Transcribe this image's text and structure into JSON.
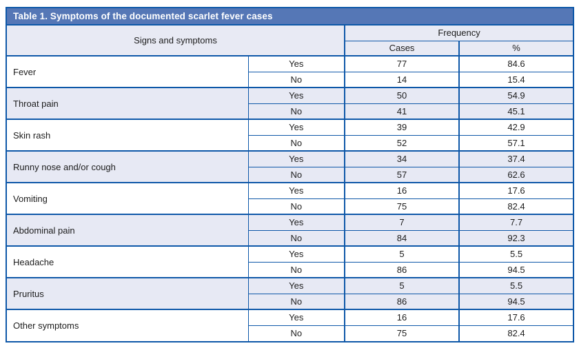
{
  "page": {
    "title_bar": "Table 1. Symptoms of the documented scarlet fever cases"
  },
  "table": {
    "columns": {
      "signs": "Signs and symptoms",
      "frequency": "Frequency",
      "cases": "Cases",
      "percent": "%"
    },
    "answer_labels": {
      "yes": "Yes",
      "no": "No"
    },
    "rows": [
      {
        "symptom": "Fever",
        "yes": {
          "cases": "77",
          "percent": "84.6"
        },
        "no": {
          "cases": "14",
          "percent": "15.4"
        }
      },
      {
        "symptom": "Throat pain",
        "yes": {
          "cases": "50",
          "percent": "54.9"
        },
        "no": {
          "cases": "41",
          "percent": "45.1"
        }
      },
      {
        "symptom": "Skin rash",
        "yes": {
          "cases": "39",
          "percent": "42.9"
        },
        "no": {
          "cases": "52",
          "percent": "57.1"
        }
      },
      {
        "symptom": "Runny nose and/or cough",
        "yes": {
          "cases": "34",
          "percent": "37.4"
        },
        "no": {
          "cases": "57",
          "percent": "62.6"
        }
      },
      {
        "symptom": "Vomiting",
        "yes": {
          "cases": "16",
          "percent": "17.6"
        },
        "no": {
          "cases": "75",
          "percent": "82.4"
        }
      },
      {
        "symptom": "Abdominal pain",
        "yes": {
          "cases": "7",
          "percent": "7.7"
        },
        "no": {
          "cases": "84",
          "percent": "92.3"
        }
      },
      {
        "symptom": "Headache",
        "yes": {
          "cases": "5",
          "percent": "5.5"
        },
        "no": {
          "cases": "86",
          "percent": "94.5"
        }
      },
      {
        "symptom": "Pruritus",
        "yes": {
          "cases": "5",
          "percent": "5.5"
        },
        "no": {
          "cases": "86",
          "percent": "94.5"
        }
      },
      {
        "symptom": "Other symptoms",
        "yes": {
          "cases": "16",
          "percent": "17.6"
        },
        "no": {
          "cases": "75",
          "percent": "82.4"
        }
      }
    ]
  },
  "colors": {
    "title_bar_bg": "#5577b6",
    "title_text": "#ffffff",
    "border_blue": "#0d57a8",
    "stripe_bg": "#e7e9f4",
    "header_bg": "#e8eaf4",
    "body_text": "#1c1c1c",
    "page_bg": "#ffffff"
  }
}
